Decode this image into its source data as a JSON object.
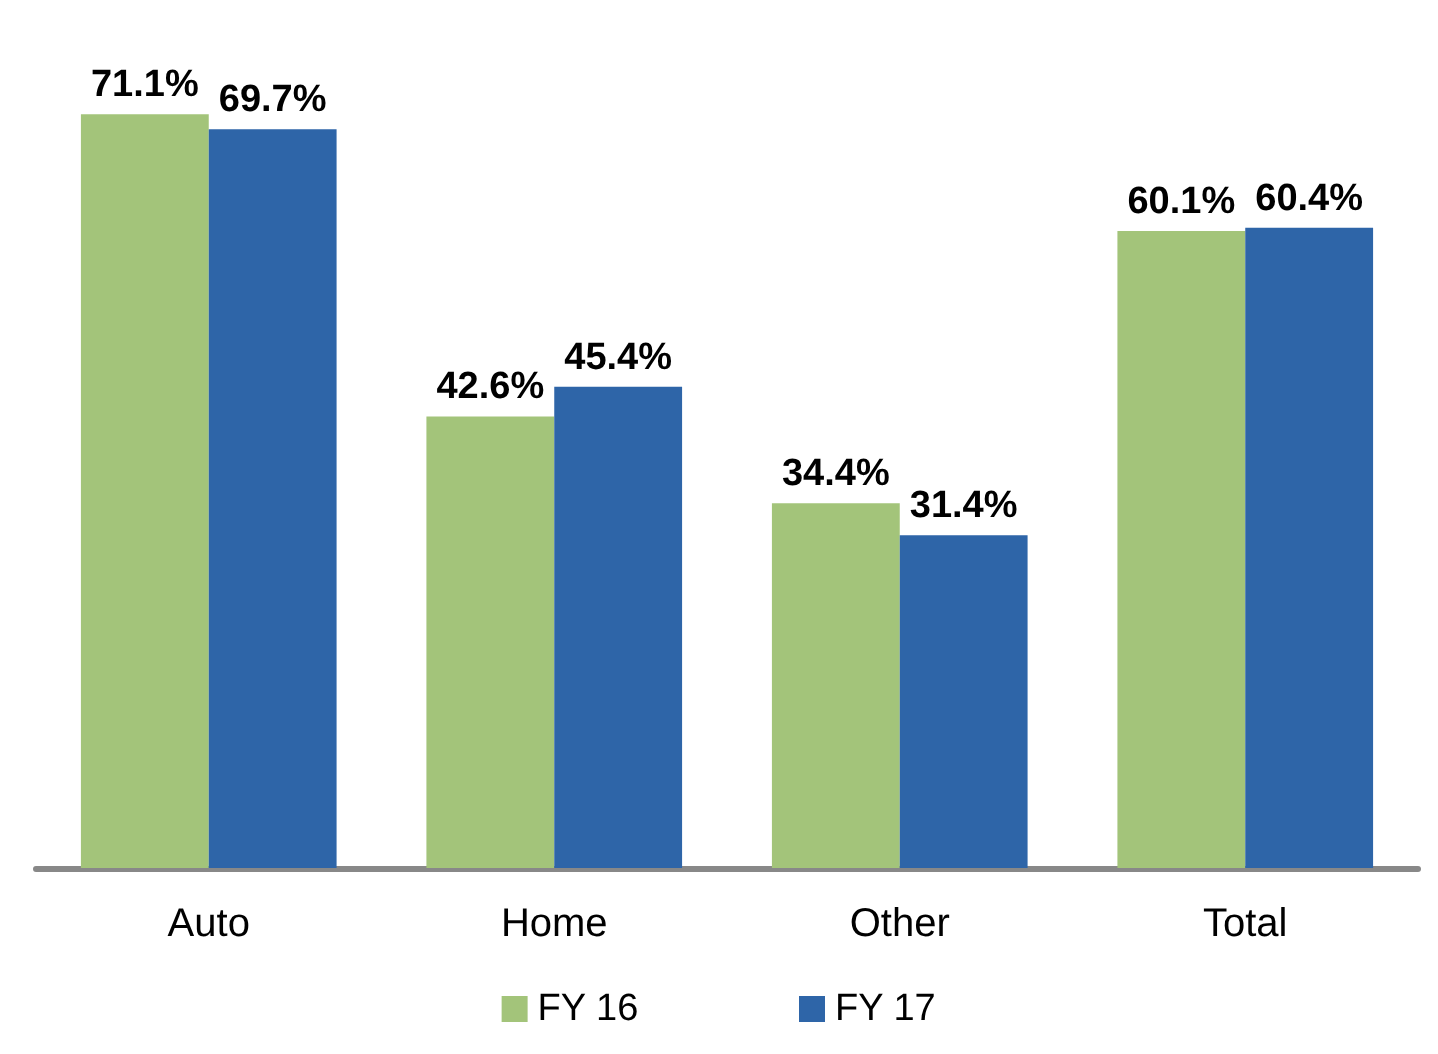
{
  "chart_data": {
    "type": "bar",
    "categories": [
      "Auto",
      "Home",
      "Other",
      "Total"
    ],
    "series": [
      {
        "name": "FY 16",
        "color": "#a3c47a",
        "values": [
          71.1,
          42.6,
          34.4,
          60.1
        ],
        "value_labels": [
          "71.1%",
          "42.6%",
          "34.4%",
          "60.1%"
        ]
      },
      {
        "name": "FY 17",
        "color": "#2e65a8",
        "values": [
          69.7,
          45.4,
          31.4,
          60.4
        ],
        "value_labels": [
          "69.7%",
          "45.4%",
          "31.4%",
          "60.4%"
        ]
      }
    ],
    "legend": "bottom"
  }
}
